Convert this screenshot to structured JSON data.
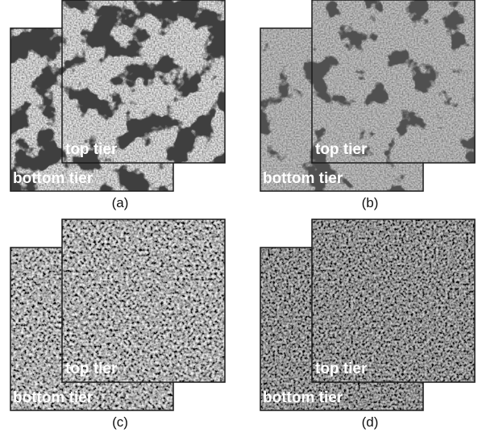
{
  "panels": [
    {
      "top_label": "top tier",
      "bottom_label": "bottom tier",
      "caption": "(a)"
    },
    {
      "top_label": "top tier",
      "bottom_label": "bottom tier",
      "caption": "(b)"
    },
    {
      "top_label": "top tier",
      "bottom_label": "bottom tier",
      "caption": "(c)"
    },
    {
      "top_label": "top tier",
      "bottom_label": "bottom tier",
      "caption": "(d)"
    }
  ]
}
